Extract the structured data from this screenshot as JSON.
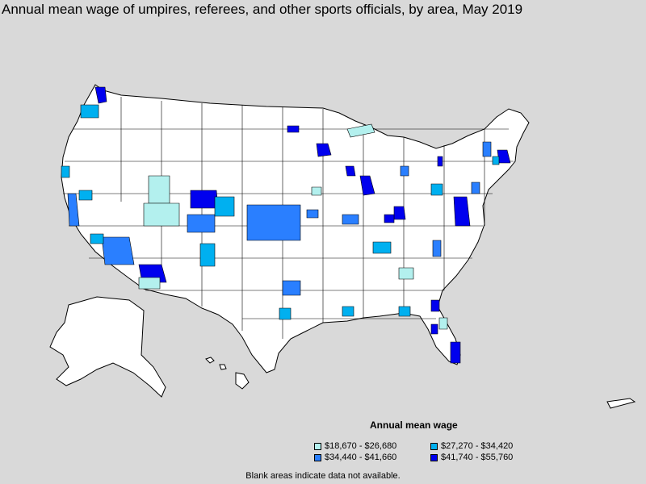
{
  "title": "Annual mean wage of umpires, referees, and other sports officials, by area, May 2019",
  "legend": {
    "title": "Annual mean wage",
    "items": [
      {
        "label": "$18,670 - $26,680",
        "color": "#b3f0ee"
      },
      {
        "label": "$27,270 - $34,420",
        "color": "#00b0f0"
      },
      {
        "label": "$34,440 - $41,660",
        "color": "#2a7fff"
      },
      {
        "label": "$41,740 - $55,760",
        "color": "#0000ee"
      }
    ]
  },
  "note": "Blank areas indicate data not available.",
  "colors": {
    "background": "#d9d9d9",
    "land": "#ffffff",
    "border": "#000000"
  }
}
